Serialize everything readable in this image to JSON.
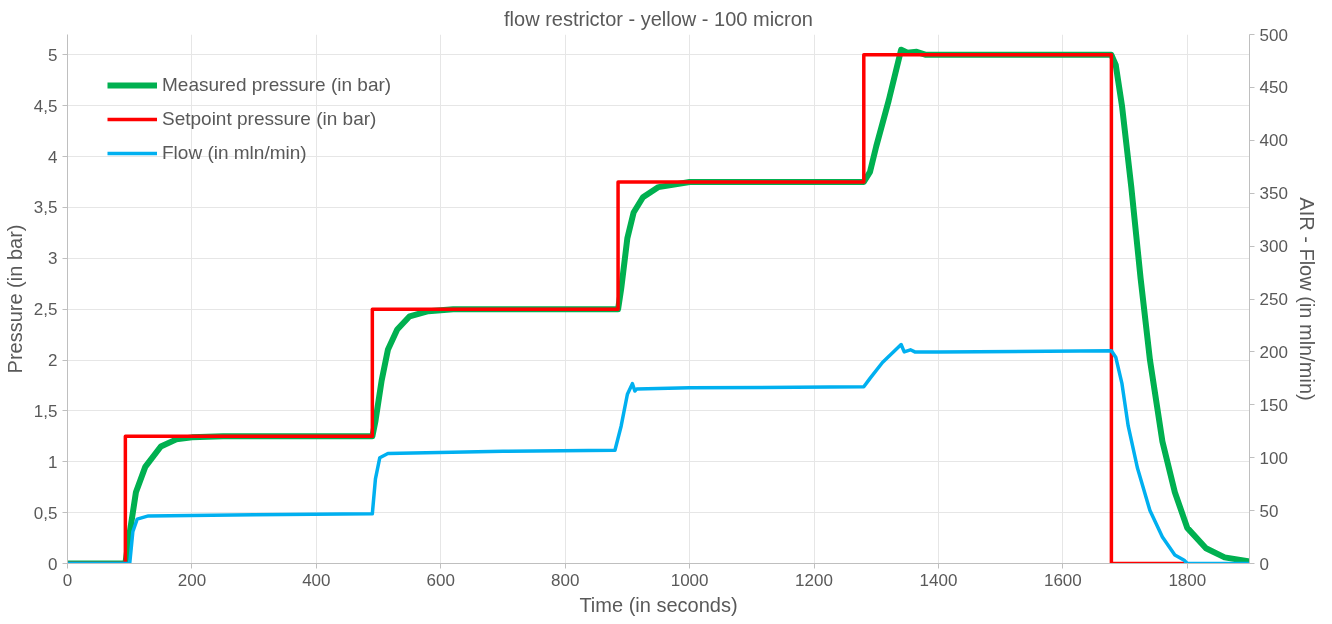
{
  "chart_data": {
    "type": "line",
    "title": "flow restrictor - yellow - 100 micron",
    "xlabel": "Time (in seconds)",
    "ylabel": "Pressure (in bar)",
    "y2label": "AIR - Flow (in mln/min)",
    "xlim": [
      0,
      1900
    ],
    "xticks": [
      0,
      200,
      400,
      600,
      800,
      1000,
      1200,
      1400,
      1600,
      1800
    ],
    "ylim": [
      0,
      5.2
    ],
    "yticks": [
      0,
      {
        "value": 0.5,
        "label": "0,5"
      },
      1,
      {
        "value": 1.5,
        "label": "1,5"
      },
      2,
      {
        "value": 2.5,
        "label": "2,5"
      },
      3,
      {
        "value": 3.5,
        "label": "3,5"
      },
      4,
      {
        "value": 4.5,
        "label": "4,5"
      },
      5
    ],
    "y2lim": [
      0,
      500
    ],
    "y2ticks": [
      0,
      50,
      100,
      150,
      200,
      250,
      300,
      350,
      400,
      450,
      500
    ],
    "grid": true,
    "legend": "top left",
    "line_style": "solid",
    "series": [
      {
        "name": "Measured pressure (in bar)",
        "color": "#00b050",
        "x": [
          0,
          93,
          100,
          110,
          125,
          150,
          175,
          200,
          250,
          490,
          495,
          505,
          515,
          530,
          550,
          580,
          620,
          885,
          890,
          900,
          910,
          925,
          950,
          1000,
          1280,
          1290,
          1300,
          1320,
          1340,
          1350,
          1365,
          1380,
          1678,
          1685,
          1695,
          1710,
          1725,
          1740,
          1760,
          1780,
          1800,
          1830,
          1860,
          1900
        ],
        "values": [
          0,
          0,
          0.3,
          0.7,
          0.95,
          1.15,
          1.22,
          1.24,
          1.25,
          1.25,
          1.4,
          1.8,
          2.1,
          2.3,
          2.43,
          2.48,
          2.5,
          2.5,
          2.7,
          3.2,
          3.45,
          3.6,
          3.7,
          3.75,
          3.75,
          3.85,
          4.1,
          4.55,
          5.05,
          5.02,
          5.03,
          5.0,
          5.0,
          4.9,
          4.5,
          3.7,
          2.8,
          2.0,
          1.2,
          0.7,
          0.35,
          0.15,
          0.06,
          0.02
        ]
      },
      {
        "name": "Setpoint pressure (in bar)",
        "color": "#ff0000",
        "x": [
          0,
          93,
          93,
          490,
          490,
          885,
          885,
          1280,
          1280,
          1678,
          1678,
          1795
        ],
        "values": [
          0,
          0,
          1.25,
          1.25,
          2.5,
          2.5,
          3.75,
          3.75,
          5,
          5,
          0,
          0
        ]
      },
      {
        "name": "Flow (in mln/min)",
        "color": "#00b0f0",
        "axis": "y2",
        "x": [
          0,
          100,
          105,
          112,
          130,
          300,
          490,
          495,
          502,
          515,
          700,
          880,
          890,
          900,
          908,
          912,
          915,
          1000,
          1280,
          1290,
          1310,
          1340,
          1345,
          1355,
          1362,
          1400,
          1678,
          1685,
          1695,
          1705,
          1720,
          1740,
          1760,
          1780,
          1795,
          1800,
          1900
        ],
        "values": [
          0,
          0,
          30,
          42,
          45,
          46,
          47,
          80,
          100,
          104,
          106,
          107,
          130,
          160,
          170,
          163,
          165,
          166,
          167,
          175,
          190,
          207,
          200,
          202,
          200,
          200,
          201,
          195,
          170,
          130,
          90,
          50,
          25,
          8,
          3,
          0,
          0
        ]
      }
    ]
  }
}
